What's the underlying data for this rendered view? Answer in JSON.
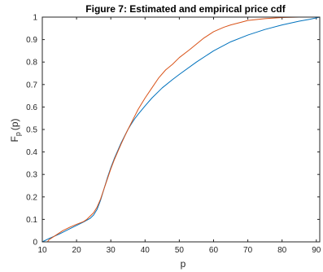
{
  "chart_data": {
    "type": "line",
    "title": "Figure 7: Estimated and empirical price cdf",
    "xlabel": "p",
    "ylabel": "F_p(p)",
    "ylabel_base": "F",
    "ylabel_sub": "p",
    "ylabel_arg": "(p)",
    "xlim": [
      10,
      91
    ],
    "ylim": [
      0,
      1
    ],
    "x_ticks": [
      10,
      20,
      30,
      40,
      50,
      60,
      70,
      80,
      90
    ],
    "y_ticks": [
      0,
      0.1,
      0.2,
      0.3,
      0.4,
      0.5,
      0.6,
      0.7,
      0.8,
      0.9,
      1
    ],
    "grid": false,
    "series": [
      {
        "color": "#0072BD",
        "x": [
          10,
          12,
          15,
          18,
          20,
          22,
          24,
          25,
          26,
          27,
          28,
          29,
          30,
          31,
          32,
          33,
          34,
          35,
          36,
          37,
          38,
          40,
          42,
          45,
          48,
          50,
          55,
          60,
          65,
          70,
          75,
          80,
          85,
          88,
          91
        ],
        "y": [
          0.0,
          0.015,
          0.035,
          0.058,
          0.073,
          0.088,
          0.105,
          0.12,
          0.145,
          0.185,
          0.235,
          0.285,
          0.33,
          0.37,
          0.405,
          0.44,
          0.47,
          0.5,
          0.525,
          0.548,
          0.568,
          0.605,
          0.64,
          0.685,
          0.722,
          0.745,
          0.8,
          0.85,
          0.89,
          0.92,
          0.945,
          0.965,
          0.982,
          0.99,
          1.0
        ]
      },
      {
        "color": "#D95319",
        "x": [
          11.5,
          12,
          14,
          16,
          18,
          20,
          22,
          23,
          24,
          25,
          26,
          27,
          28,
          29,
          30,
          31,
          32,
          33,
          34,
          35,
          36,
          37,
          38,
          40,
          42,
          44,
          46,
          48,
          50,
          53,
          55,
          57,
          60,
          63,
          65,
          68,
          70,
          75,
          80,
          85,
          91
        ],
        "y": [
          0.0,
          0.01,
          0.03,
          0.05,
          0.065,
          0.078,
          0.09,
          0.1,
          0.115,
          0.13,
          0.155,
          0.19,
          0.235,
          0.28,
          0.325,
          0.365,
          0.4,
          0.435,
          0.468,
          0.5,
          0.53,
          0.56,
          0.59,
          0.64,
          0.685,
          0.73,
          0.765,
          0.79,
          0.82,
          0.855,
          0.88,
          0.905,
          0.935,
          0.955,
          0.965,
          0.977,
          0.985,
          0.993,
          0.998,
          1.0,
          1.0
        ]
      }
    ]
  }
}
